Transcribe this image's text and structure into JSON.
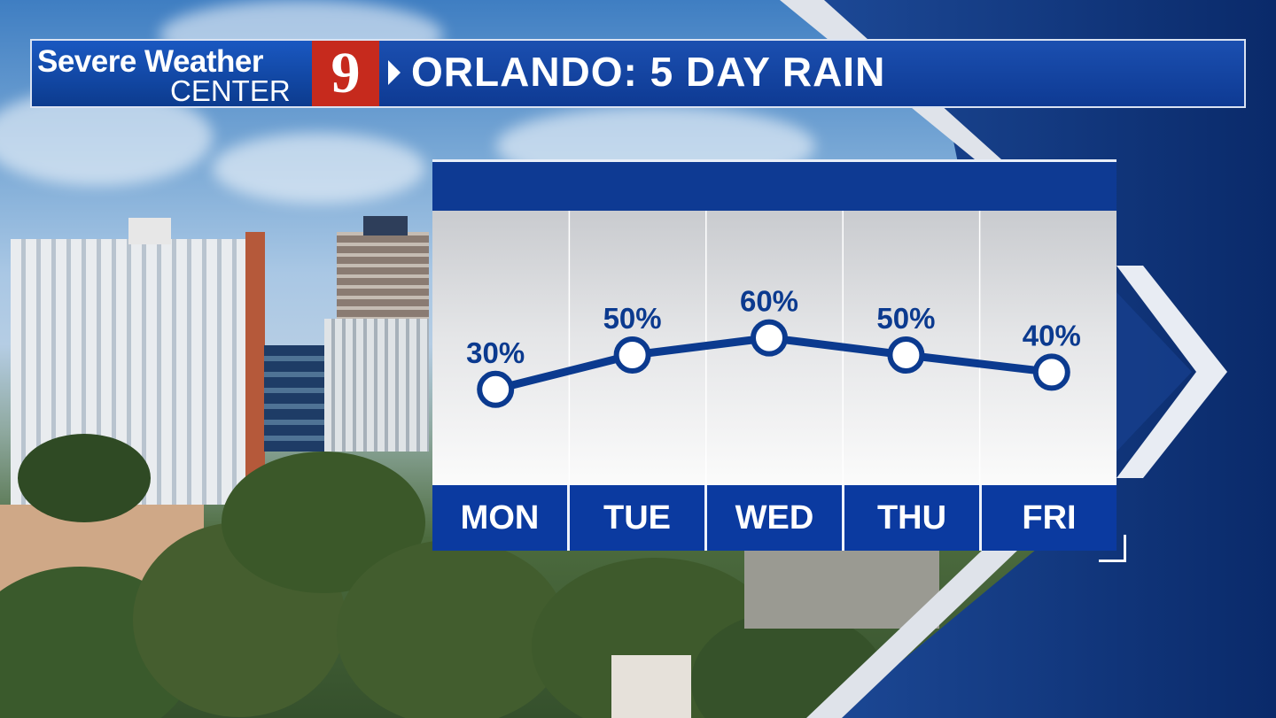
{
  "header": {
    "logo_line1": "Severe Weather",
    "logo_line2": "CENTER",
    "channel": "9",
    "title": "ORLANDO: 5 DAY RAIN"
  },
  "colors": {
    "brand_blue": "#0e3a93",
    "line": "#0b3a8f",
    "logo_red": "#c62a1d"
  },
  "chart_data": {
    "type": "line",
    "categories": [
      "MON",
      "TUE",
      "WED",
      "THU",
      "FRI"
    ],
    "series": [
      {
        "values": [
          30,
          50,
          60,
          50,
          40
        ]
      }
    ],
    "data_labels": [
      "30%",
      "50%",
      "60%",
      "50%",
      "40%"
    ],
    "ylim": [
      0,
      100
    ],
    "grid": true
  }
}
